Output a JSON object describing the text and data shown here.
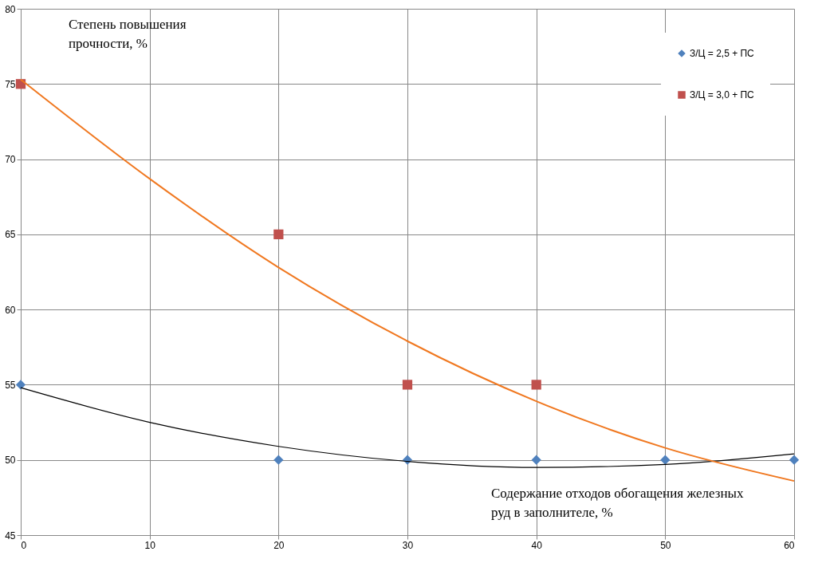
{
  "chart_data": {
    "type": "scatter",
    "xlabel": "Содержание отходов обогащения железных руд в заполнителе, %",
    "ylabel": "Степень повышения прочности, %",
    "xlim": [
      0,
      60
    ],
    "ylim": [
      45,
      80
    ],
    "xticks": [
      0,
      10,
      20,
      30,
      40,
      50,
      60
    ],
    "yticks": [
      45,
      50,
      55,
      60,
      65,
      70,
      75,
      80
    ],
    "grid": true,
    "legend": "top right",
    "series": [
      {
        "name": "З/Ц = 2,5 + ПС",
        "type": "scatter",
        "marker": "diamond",
        "color": "#4f81bd",
        "x": [
          0,
          20,
          30,
          40,
          50,
          60
        ],
        "values": [
          55,
          50,
          50,
          50,
          50,
          50
        ]
      },
      {
        "name": "З/Ц = 3,0 + ПС",
        "type": "scatter",
        "marker": "square",
        "color": "#c0504d",
        "x": [
          0,
          20,
          30,
          40
        ],
        "values": [
          75,
          65,
          55,
          55
        ]
      },
      {
        "type": "line",
        "color": "#000000",
        "marker": "none",
        "x": [
          0,
          10,
          20,
          30,
          40,
          50,
          60
        ],
        "values": [
          54.8,
          52.5,
          50.9,
          49.9,
          49.5,
          49.7,
          50.4
        ]
      },
      {
        "type": "line",
        "color": "#f07820",
        "marker": "none",
        "x": [
          0,
          10,
          20,
          30,
          40,
          50,
          60
        ],
        "values": [
          75.3,
          68.7,
          62.8,
          57.9,
          53.9,
          50.8,
          48.6
        ]
      }
    ]
  }
}
